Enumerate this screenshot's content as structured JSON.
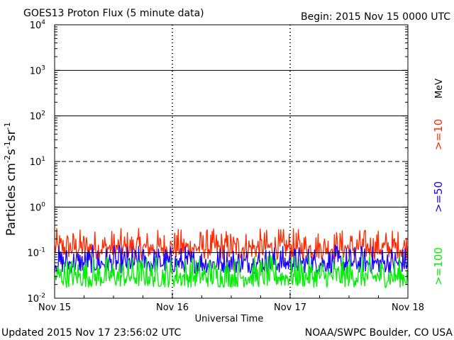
{
  "chart_data": {
    "type": "line",
    "title": "GOES13 Proton Flux (5 minute data)",
    "begin_label": "Begin: 2015 Nov 15 0000 UTC",
    "xlabel": "Universal Time",
    "ylabel": "Particles cm⁻²s⁻¹sr⁻¹",
    "ylabel_parts": {
      "main": "Particles cm",
      "sup1": "-2",
      "mid1": "s",
      "sup2": "-1",
      "mid2": "sr",
      "sup3": "-1"
    },
    "y_scale": "log",
    "ylim": [
      0.01,
      10000
    ],
    "xlim_days": [
      0,
      3
    ],
    "x_ticks": [
      {
        "label": "Nov 15",
        "day": 0
      },
      {
        "label": "Nov 16",
        "day": 1
      },
      {
        "label": "Nov 17",
        "day": 2
      },
      {
        "label": "Nov 18",
        "day": 3
      }
    ],
    "y_ticks": [
      {
        "value": 0.01,
        "base": "10",
        "exp": "-2"
      },
      {
        "value": 0.1,
        "base": "10",
        "exp": "-1"
      },
      {
        "value": 1,
        "base": "10",
        "exp": "0"
      },
      {
        "value": 10,
        "base": "10",
        "exp": "1"
      },
      {
        "value": 100,
        "base": "10",
        "exp": "2"
      },
      {
        "value": 1000,
        "base": "10",
        "exp": "3"
      },
      {
        "value": 10000,
        "base": "10",
        "exp": "4"
      }
    ],
    "threshold_lines": [
      {
        "value": 1000,
        "style": "solid"
      },
      {
        "value": 100,
        "style": "solid"
      },
      {
        "value": 10,
        "style": "dashed"
      },
      {
        "value": 1,
        "style": "solid"
      },
      {
        "value": 0.1,
        "style": "solid"
      }
    ],
    "series": [
      {
        "name": ">=10",
        "color": "#ff2a00",
        "typical": 0.13,
        "spread": [
          0.07,
          0.35
        ]
      },
      {
        "name": ">=50",
        "color": "#1a00ff",
        "typical": 0.06,
        "spread": [
          0.035,
          0.15
        ]
      },
      {
        "name": ">=100",
        "color": "#00ee00",
        "typical": 0.03,
        "spread": [
          0.017,
          0.09
        ]
      }
    ],
    "units_label": "MeV",
    "grid": false
  },
  "footer": {
    "updated": "Updated 2015 Nov 17 23:56:02 UTC",
    "source": "NOAA/SWPC Boulder, CO USA"
  }
}
